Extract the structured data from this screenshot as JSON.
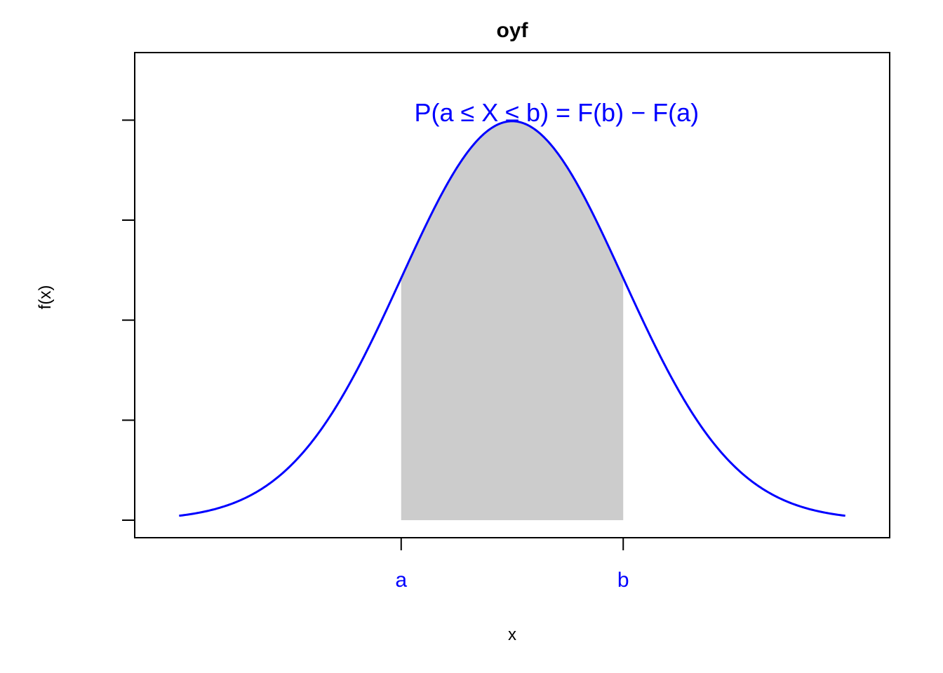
{
  "chart_data": {
    "type": "area",
    "title": "oyf",
    "xlabel": "x",
    "ylabel": "f(x)",
    "distribution": "normal",
    "mean": 0,
    "sd": 1,
    "xlim": [
      -3.4,
      3.4
    ],
    "ylim": [
      0,
      0.45
    ],
    "curve_x_range": [
      -3.0,
      3.0
    ],
    "x_ticks": [
      {
        "label": "a",
        "value": -1.0
      },
      {
        "label": "b",
        "value": 1.0
      }
    ],
    "y_ticks": [
      0,
      0.1,
      0.2,
      0.3,
      0.4
    ],
    "y_tick_labels_shown": false,
    "shaded_region": {
      "from": -1.0,
      "to": 1.0,
      "color": "#cccccc"
    },
    "annotation": {
      "text": "P(a ≤ X ≤ b) = F(b) − F(a)",
      "x": 0.4,
      "y": 0.45
    },
    "colors": {
      "curve": "#0000ff",
      "tick_labels": "#0000ff",
      "annotation": "#0000ff",
      "shade": "#cccccc",
      "frame": "#000000"
    },
    "grid": false,
    "legend": "none"
  }
}
